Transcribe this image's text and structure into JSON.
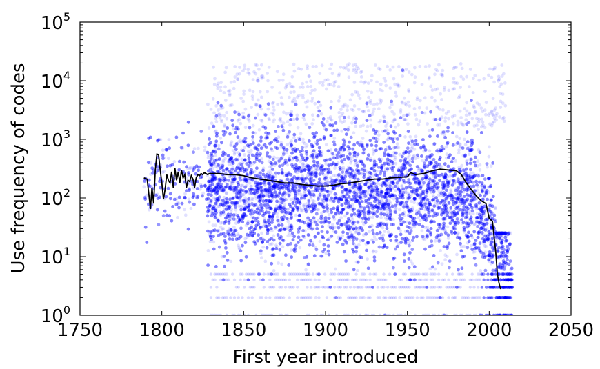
{
  "chart_data": {
    "type": "scatter",
    "title": "",
    "xlabel": "First year introduced",
    "ylabel": "Use frequency of codes",
    "xlim": [
      1750,
      2050
    ],
    "ylim": [
      1,
      100000
    ],
    "yscale": "log",
    "grid": false,
    "x_ticks": [
      "1750",
      "1800",
      "1850",
      "1900",
      "1950",
      "2000",
      "2050"
    ],
    "y_ticks": [
      {
        "base": "10",
        "exp": "0"
      },
      {
        "base": "10",
        "exp": "1"
      },
      {
        "base": "10",
        "exp": "2"
      },
      {
        "base": "10",
        "exp": "3"
      },
      {
        "base": "10",
        "exp": "4"
      },
      {
        "base": "10",
        "exp": "5"
      }
    ],
    "colors": {
      "scatter": "#0000ff",
      "line": "#000000"
    },
    "scatter_description_count": 0,
    "scatter_x_range": [
      1789,
      2014
    ],
    "series": [
      {
        "type": "scatter",
        "x_range": [
          1789,
          2014
        ],
        "bulk_band_low": 5,
        "bulk_band_high": 2000
      },
      {
        "type": "line",
        "x": [
          1789,
          1791,
          1792,
          1793,
          1794,
          1795,
          1796,
          1797,
          1798,
          1799,
          1800,
          1801,
          1802,
          1803,
          1804,
          1805,
          1806,
          1807,
          1808,
          1809,
          1810,
          1811,
          1812,
          1813,
          1814,
          1815,
          1816,
          1817,
          1818,
          1819,
          1820,
          1821,
          1822,
          1823,
          1824,
          1825,
          1826,
          1827,
          1828,
          1829,
          1830,
          1835,
          1840,
          1845,
          1850,
          1855,
          1860,
          1865,
          1870,
          1875,
          1880,
          1885,
          1890,
          1895,
          1900,
          1905,
          1910,
          1915,
          1920,
          1925,
          1930,
          1935,
          1940,
          1945,
          1950,
          1952,
          1955,
          1960,
          1965,
          1970,
          1975,
          1980,
          1983,
          1986,
          1989,
          1992,
          1995,
          1998,
          2000,
          2002,
          2004,
          2005,
          2006,
          2007
        ],
        "y": [
          220,
          210,
          120,
          65,
          150,
          80,
          300,
          560,
          550,
          300,
          180,
          95,
          140,
          250,
          200,
          180,
          280,
          150,
          320,
          200,
          280,
          180,
          300,
          220,
          250,
          150,
          200,
          190,
          240,
          210,
          150,
          220,
          250,
          240,
          260,
          250,
          270,
          260,
          250,
          260,
          260,
          260,
          250,
          250,
          240,
          220,
          210,
          200,
          190,
          180,
          180,
          170,
          165,
          160,
          160,
          165,
          175,
          180,
          190,
          200,
          210,
          210,
          220,
          225,
          230,
          270,
          250,
          260,
          290,
          310,
          300,
          290,
          250,
          180,
          140,
          110,
          90,
          80,
          45,
          40,
          12,
          5,
          3.5,
          2.8
        ]
      }
    ]
  }
}
